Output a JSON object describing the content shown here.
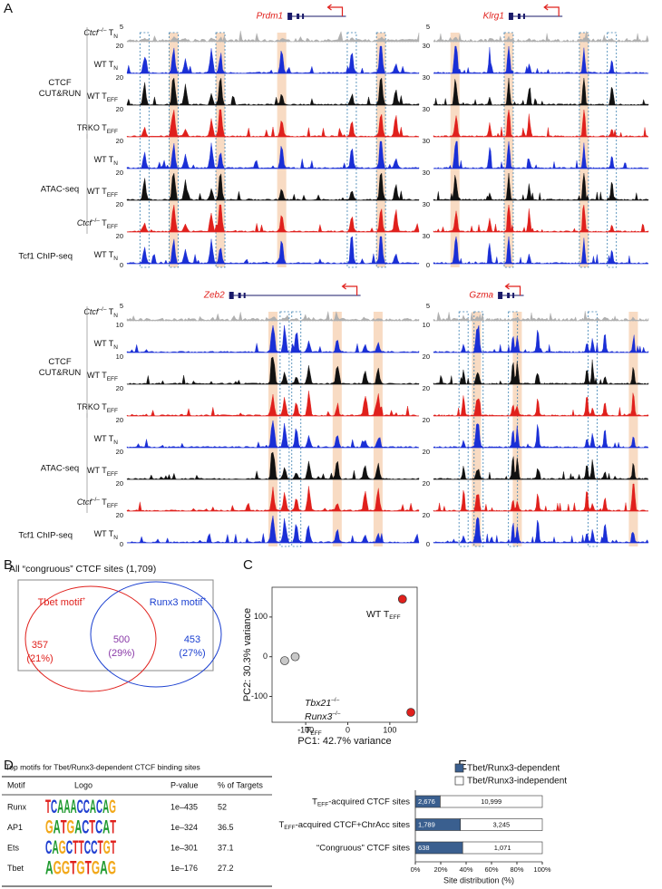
{
  "panel_a": {
    "letter": "A",
    "group_labels": [
      [
        "CTCF",
        "CUT&RUN"
      ],
      [
        "ATAC-seq"
      ],
      [
        "Tcf1 ChIP-seq"
      ]
    ],
    "track_labels": [
      [
        {
          "i": "Ctcf"
        },
        {
          "sup": "–/–"
        },
        {
          "t": " T"
        },
        {
          "sub": "N"
        }
      ],
      [
        {
          "t": "WT T"
        },
        {
          "sub": "N"
        }
      ],
      [
        {
          "t": "WT T"
        },
        {
          "sub": "EFF"
        }
      ],
      [
        {
          "t": "TRKO T"
        },
        {
          "sub": "EFF"
        }
      ],
      [
        {
          "t": "WT T"
        },
        {
          "sub": "N"
        }
      ],
      [
        {
          "t": "WT T"
        },
        {
          "sub": "EFF"
        }
      ],
      [
        {
          "i": "Ctcf"
        },
        {
          "sup": "–/–"
        },
        {
          "t": " T"
        },
        {
          "sub": "EFF"
        }
      ],
      [
        {
          "t": "WT T"
        },
        {
          "sub": "N"
        }
      ]
    ],
    "track_colors": [
      "#b0b0b0",
      "#1a2fd6",
      "#111111",
      "#e0201c",
      "#1a2fd6",
      "#111111",
      "#e0201c",
      "#1a2fd6"
    ],
    "loci": [
      {
        "gene": "Prdm1",
        "scales": [
          "5",
          "20",
          "20",
          "20",
          "20",
          "20",
          "20",
          "20",
          "0"
        ]
      },
      {
        "gene": "Klrg1",
        "scales": [
          "5",
          "30",
          "30",
          "30",
          "30",
          "30",
          "30",
          "30",
          "0"
        ]
      },
      {
        "gene": "Zeb2",
        "scales": [
          "5",
          "10",
          "10",
          "20",
          "20",
          "20",
          "20",
          "20",
          "0"
        ]
      },
      {
        "gene": "Gzma",
        "scales": [
          "5",
          "10",
          "20",
          "20",
          "20",
          "20",
          "20",
          "20",
          "0"
        ]
      }
    ]
  },
  "panel_b": {
    "letter": "B",
    "title": "All “congruous” CTCF sites (1,709)",
    "left_label": [
      {
        "t": "Tbet motif"
      },
      {
        "sup": "+"
      }
    ],
    "right_label": [
      {
        "t": "Runx3 motif"
      },
      {
        "sup": "+"
      }
    ],
    "left_count": "357",
    "left_pct": "(21%)",
    "both_count": "500",
    "both_pct": "(29%)",
    "right_count": "453",
    "right_pct": "(27%)"
  },
  "panel_c": {
    "letter": "C",
    "chart_data": {
      "type": "scatter",
      "x_label": "PC1: 42.7% variance",
      "y_label": "PC2: 30.3% variance",
      "xlim": [
        -180,
        165
      ],
      "ylim": [
        -165,
        175
      ],
      "xticks": [
        -100,
        0,
        100
      ],
      "yticks": [
        -100,
        0,
        100
      ],
      "series": [
        {
          "name": [
            {
              "t": "WT T"
            },
            {
              "sub": "EFF"
            }
          ],
          "color": "#e0201c",
          "x": [
            130,
            150
          ],
          "values": [
            145,
            -140
          ]
        },
        {
          "name": [
            {
              "i": "Tbx21"
            },
            {
              "sup": "–/–"
            }
          ],
          "name2": [
            {
              "i": "Runx3"
            },
            {
              "sup": "–/–"
            }
          ],
          "name3": [
            {
              "t": "T"
            },
            {
              "sub": "EFF"
            }
          ],
          "color": "#c8c8c8",
          "x": [
            -150,
            -125
          ],
          "values": [
            -10,
            0
          ]
        }
      ]
    }
  },
  "panel_d": {
    "letter": "D",
    "title": "Top motifs for Tbet/Runx3-dependent CTCF binding sites",
    "table": {
      "header": [
        "Motif",
        "Logo",
        "P-value",
        "% of Targets"
      ],
      "rows": [
        [
          "Runx",
          "TCAAACCACAG",
          "1e–435",
          "52"
        ],
        [
          "AP1",
          "GATGACTCAT",
          "1e–324",
          "36.5"
        ],
        [
          "Ets",
          "CAGCTTCCTGT",
          "1e–301",
          "37.1"
        ],
        [
          "Tbet",
          "AGGTGTGAG",
          "1e–176",
          "27.2"
        ]
      ]
    }
  },
  "panel_e": {
    "letter": "E",
    "chart_data": {
      "type": "stacked_barh",
      "x_label": "Site distribution (%)",
      "categories": [
        [
          {
            "t": "T"
          },
          {
            "sub": "EFF"
          },
          {
            "t": "-acquired CTCF sites"
          }
        ],
        [
          {
            "t": "T"
          },
          {
            "sub": "EFF"
          },
          {
            "t": "-acquired CTCF+ChrAcc sites"
          }
        ],
        [
          {
            "t": "“Congruous” CTCF sites"
          }
        ]
      ],
      "xlim": [
        0,
        100
      ],
      "xticks": [
        {
          "value": 0,
          "label": "0%"
        },
        {
          "value": 20,
          "label": "20%"
        },
        {
          "value": 40,
          "label": "40%"
        },
        {
          "value": 60,
          "label": "60%"
        },
        {
          "value": 80,
          "label": "80%"
        },
        {
          "value": 100,
          "label": "100%"
        }
      ],
      "series": [
        {
          "name": "Tbet/Runx3-dependent",
          "color": "#3a5f8f",
          "values": [
            19.6,
            35.5,
            37.3
          ],
          "count_labels": [
            "2,676",
            "1,789",
            "638"
          ]
        },
        {
          "name": "Tbet/Runx3-independent",
          "color": "#ffffff",
          "values": [
            80.4,
            64.5,
            62.7
          ],
          "count_labels": [
            "10,999",
            "3,245",
            "1,071"
          ]
        }
      ]
    }
  }
}
